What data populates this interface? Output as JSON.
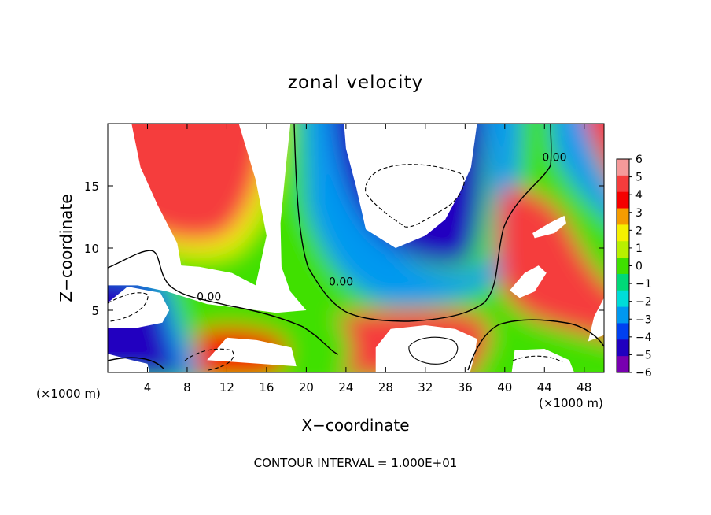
{
  "chart_data": {
    "type": "heatmap",
    "title": "zonal velocity",
    "xlabel": "X−coordinate",
    "ylabel": "Z−coordinate",
    "x_unit_left": "(×1000 m)",
    "x_unit_right": "(×1000 m)",
    "xlim": [
      0,
      50
    ],
    "ylim": [
      0,
      20
    ],
    "x_ticks": [
      4,
      8,
      12,
      16,
      20,
      24,
      28,
      32,
      36,
      40,
      44,
      48
    ],
    "y_ticks": [
      5,
      10,
      15
    ],
    "colorbar": {
      "range": [
        -6,
        6
      ],
      "tick_values": [
        6,
        5,
        4,
        3,
        2,
        1,
        0,
        -1,
        -2,
        -3,
        -4,
        -5,
        -6
      ],
      "tick_labels": [
        "6",
        "5",
        "4",
        "3",
        "2",
        "1",
        "0",
        "−1",
        "−2",
        "−3",
        "−4",
        "−5",
        "−6"
      ],
      "colors_high_to_low": [
        "#f59a9a",
        "#f53c3c",
        "#f50000",
        "#f59c00",
        "#f5f000",
        "#b8f000",
        "#3fe000",
        "#00d878",
        "#00dcd8",
        "#0098f0",
        "#0040f0",
        "#2000c0",
        "#7800b0"
      ]
    },
    "contour_labels": [
      {
        "text": "0.00",
        "x": 10.2,
        "z": 5.8
      },
      {
        "text": "0.00",
        "x": 23.5,
        "z": 7.0
      },
      {
        "text": "0.00",
        "x": 45.0,
        "z": 17.0
      }
    ],
    "footer": "CONTOUR INTERVAL = 1.000E+01",
    "regions": [
      {
        "name": "upper-left-saturated",
        "polygon": [
          [
            0.0,
            20.0
          ],
          [
            2.4,
            20.0
          ],
          [
            3.3,
            16.5
          ],
          [
            5.0,
            13.5
          ],
          [
            7.0,
            10.4
          ],
          [
            7.4,
            8.6
          ],
          [
            9.2,
            8.5
          ],
          [
            12.5,
            8.0
          ],
          [
            14.9,
            7.0
          ],
          [
            16.0,
            11.0
          ],
          [
            14.9,
            15.5
          ],
          [
            13.2,
            20.0
          ],
          [
            18.4,
            20.0
          ],
          [
            18.0,
            17.0
          ],
          [
            17.4,
            12.0
          ],
          [
            17.5,
            8.5
          ],
          [
            18.4,
            6.5
          ],
          [
            20.0,
            5.0
          ],
          [
            17.0,
            4.8
          ],
          [
            10.0,
            5.5
          ],
          [
            6.0,
            6.5
          ],
          [
            3.0,
            7.0
          ],
          [
            0.0,
            7.0
          ]
        ]
      },
      {
        "name": "center-saturated",
        "polygon": [
          [
            23.8,
            20.0
          ],
          [
            37.2,
            20.0
          ],
          [
            36.6,
            16.5
          ],
          [
            35.5,
            14.5
          ],
          [
            34.0,
            12.3
          ],
          [
            32.0,
            11.0
          ],
          [
            29.0,
            10.0
          ],
          [
            26.0,
            11.5
          ],
          [
            25.0,
            15.0
          ],
          [
            24.0,
            18.0
          ]
        ]
      },
      {
        "name": "bottom-center-saturated",
        "polygon": [
          [
            27.0,
            0.0
          ],
          [
            36.5,
            0.0
          ],
          [
            37.0,
            1.5
          ],
          [
            37.2,
            2.7
          ],
          [
            35.0,
            3.5
          ],
          [
            32.0,
            3.8
          ],
          [
            28.5,
            3.5
          ],
          [
            27.0,
            2.0
          ]
        ]
      },
      {
        "name": "left-lower-saturated",
        "polygon": [
          [
            0.0,
            5.6
          ],
          [
            2.0,
            6.9
          ],
          [
            5.3,
            6.4
          ],
          [
            6.2,
            5.0
          ],
          [
            5.5,
            4.0
          ],
          [
            3.0,
            3.6
          ],
          [
            0.0,
            3.6
          ]
        ]
      },
      {
        "name": "right-upper-blob",
        "polygon": [
          [
            42.8,
            11.2
          ],
          [
            44.5,
            12.0
          ],
          [
            46.0,
            12.6
          ],
          [
            46.2,
            12.0
          ],
          [
            45.0,
            11.2
          ],
          [
            43.0,
            10.8
          ]
        ]
      },
      {
        "name": "right-middle-blob",
        "polygon": [
          [
            40.5,
            6.6
          ],
          [
            42.0,
            8.0
          ],
          [
            43.4,
            8.6
          ],
          [
            44.2,
            8.0
          ],
          [
            43.0,
            6.5
          ],
          [
            41.5,
            6.0
          ]
        ]
      },
      {
        "name": "bottom-left-saturated",
        "polygon": [
          [
            0.0,
            0.0
          ],
          [
            0.0,
            1.5
          ],
          [
            2.4,
            1.0
          ],
          [
            4.0,
            0.7
          ],
          [
            4.2,
            0.0
          ]
        ]
      },
      {
        "name": "bottom-right-saturated",
        "polygon": [
          [
            40.7,
            0.0
          ],
          [
            41.0,
            1.8
          ],
          [
            44.0,
            1.9
          ],
          [
            46.5,
            1.0
          ],
          [
            47.0,
            0.0
          ]
        ]
      },
      {
        "name": "far-right-blob",
        "polygon": [
          [
            48.4,
            2.5
          ],
          [
            50.0,
            3.0
          ],
          [
            50.0,
            6.0
          ],
          [
            49.0,
            4.5
          ]
        ]
      },
      {
        "name": "bottom-mid-left-saturated",
        "polygon": [
          [
            10.0,
            1.0
          ],
          [
            12.0,
            2.8
          ],
          [
            15.0,
            2.6
          ],
          [
            18.5,
            2.0
          ],
          [
            19.0,
            0.5
          ]
        ]
      }
    ]
  }
}
